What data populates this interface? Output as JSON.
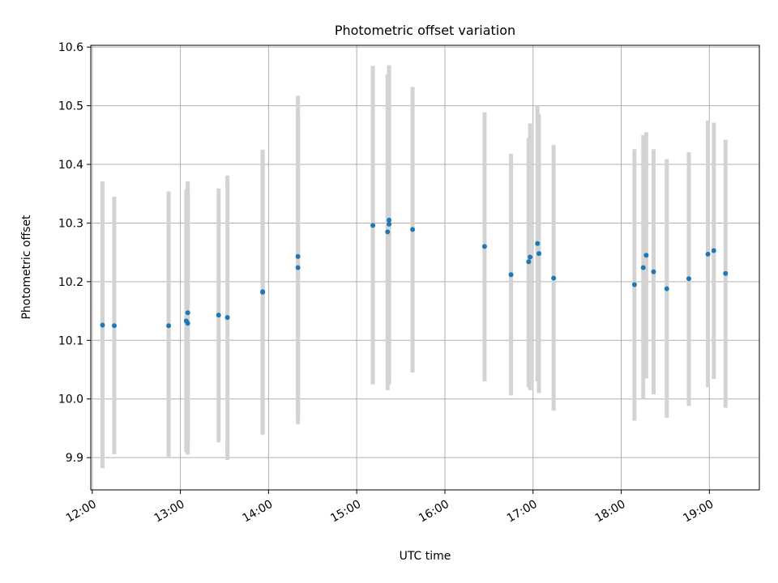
{
  "chart_data": {
    "type": "scatter",
    "title": "Photometric offset variation",
    "xlabel": "UTC time",
    "ylabel": "Photometric offset",
    "x_tick_labels": [
      "12:00",
      "13:00",
      "14:00",
      "15:00",
      "16:00",
      "17:00",
      "18:00",
      "19:00"
    ],
    "y_tick_labels": [
      "9.9",
      "10.0",
      "10.1",
      "10.2",
      "10.3",
      "10.4",
      "10.5",
      "10.6"
    ],
    "xlim": [
      "11:59",
      "19:34"
    ],
    "ylim": [
      9.845,
      10.603
    ],
    "grid": true,
    "marker_color": "#1f77b4",
    "errorbar_color": "#d3d3d3",
    "points": [
      {
        "x": "12:07",
        "y": 10.126,
        "yerr_low": 9.882,
        "yerr_high": 10.371
      },
      {
        "x": "12:15",
        "y": 10.125,
        "yerr_low": 9.906,
        "yerr_high": 10.345
      },
      {
        "x": "12:52",
        "y": 10.125,
        "yerr_low": 9.899,
        "yerr_high": 10.354
      },
      {
        "x": "13:04",
        "y": 10.133,
        "yerr_low": 9.909,
        "yerr_high": 10.357
      },
      {
        "x": "13:05",
        "y": 10.147,
        "yerr_low": 9.923,
        "yerr_high": 10.371
      },
      {
        "x": "13:05",
        "y": 10.129,
        "yerr_low": 9.905,
        "yerr_high": 10.353
      },
      {
        "x": "13:26",
        "y": 10.143,
        "yerr_low": 9.926,
        "yerr_high": 10.359
      },
      {
        "x": "13:32",
        "y": 10.139,
        "yerr_low": 9.896,
        "yerr_high": 10.381
      },
      {
        "x": "13:56",
        "y": 10.183,
        "yerr_low": 9.94,
        "yerr_high": 10.425
      },
      {
        "x": "13:56",
        "y": 10.182,
        "yerr_low": 9.939,
        "yerr_high": 10.424
      },
      {
        "x": "14:20",
        "y": 10.243,
        "yerr_low": 9.968,
        "yerr_high": 10.517
      },
      {
        "x": "14:20",
        "y": 10.224,
        "yerr_low": 9.957,
        "yerr_high": 10.491
      },
      {
        "x": "15:11",
        "y": 10.296,
        "yerr_low": 10.025,
        "yerr_high": 10.568
      },
      {
        "x": "15:21",
        "y": 10.285,
        "yerr_low": 10.015,
        "yerr_high": 10.554
      },
      {
        "x": "15:22",
        "y": 10.305,
        "yerr_low": 10.04,
        "yerr_high": 10.569
      },
      {
        "x": "15:22",
        "y": 10.298,
        "yerr_low": 10.025,
        "yerr_high": 10.56
      },
      {
        "x": "15:38",
        "y": 10.289,
        "yerr_low": 10.045,
        "yerr_high": 10.532
      },
      {
        "x": "16:27",
        "y": 10.26,
        "yerr_low": 10.03,
        "yerr_high": 10.489
      },
      {
        "x": "16:45",
        "y": 10.212,
        "yerr_low": 10.006,
        "yerr_high": 10.418
      },
      {
        "x": "16:57",
        "y": 10.234,
        "yerr_low": 10.02,
        "yerr_high": 10.445
      },
      {
        "x": "16:58",
        "y": 10.242,
        "yerr_low": 10.015,
        "yerr_high": 10.47
      },
      {
        "x": "17:03",
        "y": 10.265,
        "yerr_low": 10.03,
        "yerr_high": 10.5
      },
      {
        "x": "17:04",
        "y": 10.248,
        "yerr_low": 10.01,
        "yerr_high": 10.486
      },
      {
        "x": "17:14",
        "y": 10.206,
        "yerr_low": 9.98,
        "yerr_high": 10.433
      },
      {
        "x": "18:09",
        "y": 10.195,
        "yerr_low": 9.963,
        "yerr_high": 10.426
      },
      {
        "x": "18:15",
        "y": 10.224,
        "yerr_low": 10.0,
        "yerr_high": 10.45
      },
      {
        "x": "18:17",
        "y": 10.245,
        "yerr_low": 10.035,
        "yerr_high": 10.455
      },
      {
        "x": "18:22",
        "y": 10.217,
        "yerr_low": 10.008,
        "yerr_high": 10.426
      },
      {
        "x": "18:31",
        "y": 10.188,
        "yerr_low": 9.968,
        "yerr_high": 10.409
      },
      {
        "x": "18:46",
        "y": 10.205,
        "yerr_low": 9.988,
        "yerr_high": 10.421
      },
      {
        "x": "18:59",
        "y": 10.247,
        "yerr_low": 10.02,
        "yerr_high": 10.475
      },
      {
        "x": "19:03",
        "y": 10.253,
        "yerr_low": 10.034,
        "yerr_high": 10.471
      },
      {
        "x": "19:11",
        "y": 10.214,
        "yerr_low": 9.985,
        "yerr_high": 10.442
      }
    ]
  }
}
